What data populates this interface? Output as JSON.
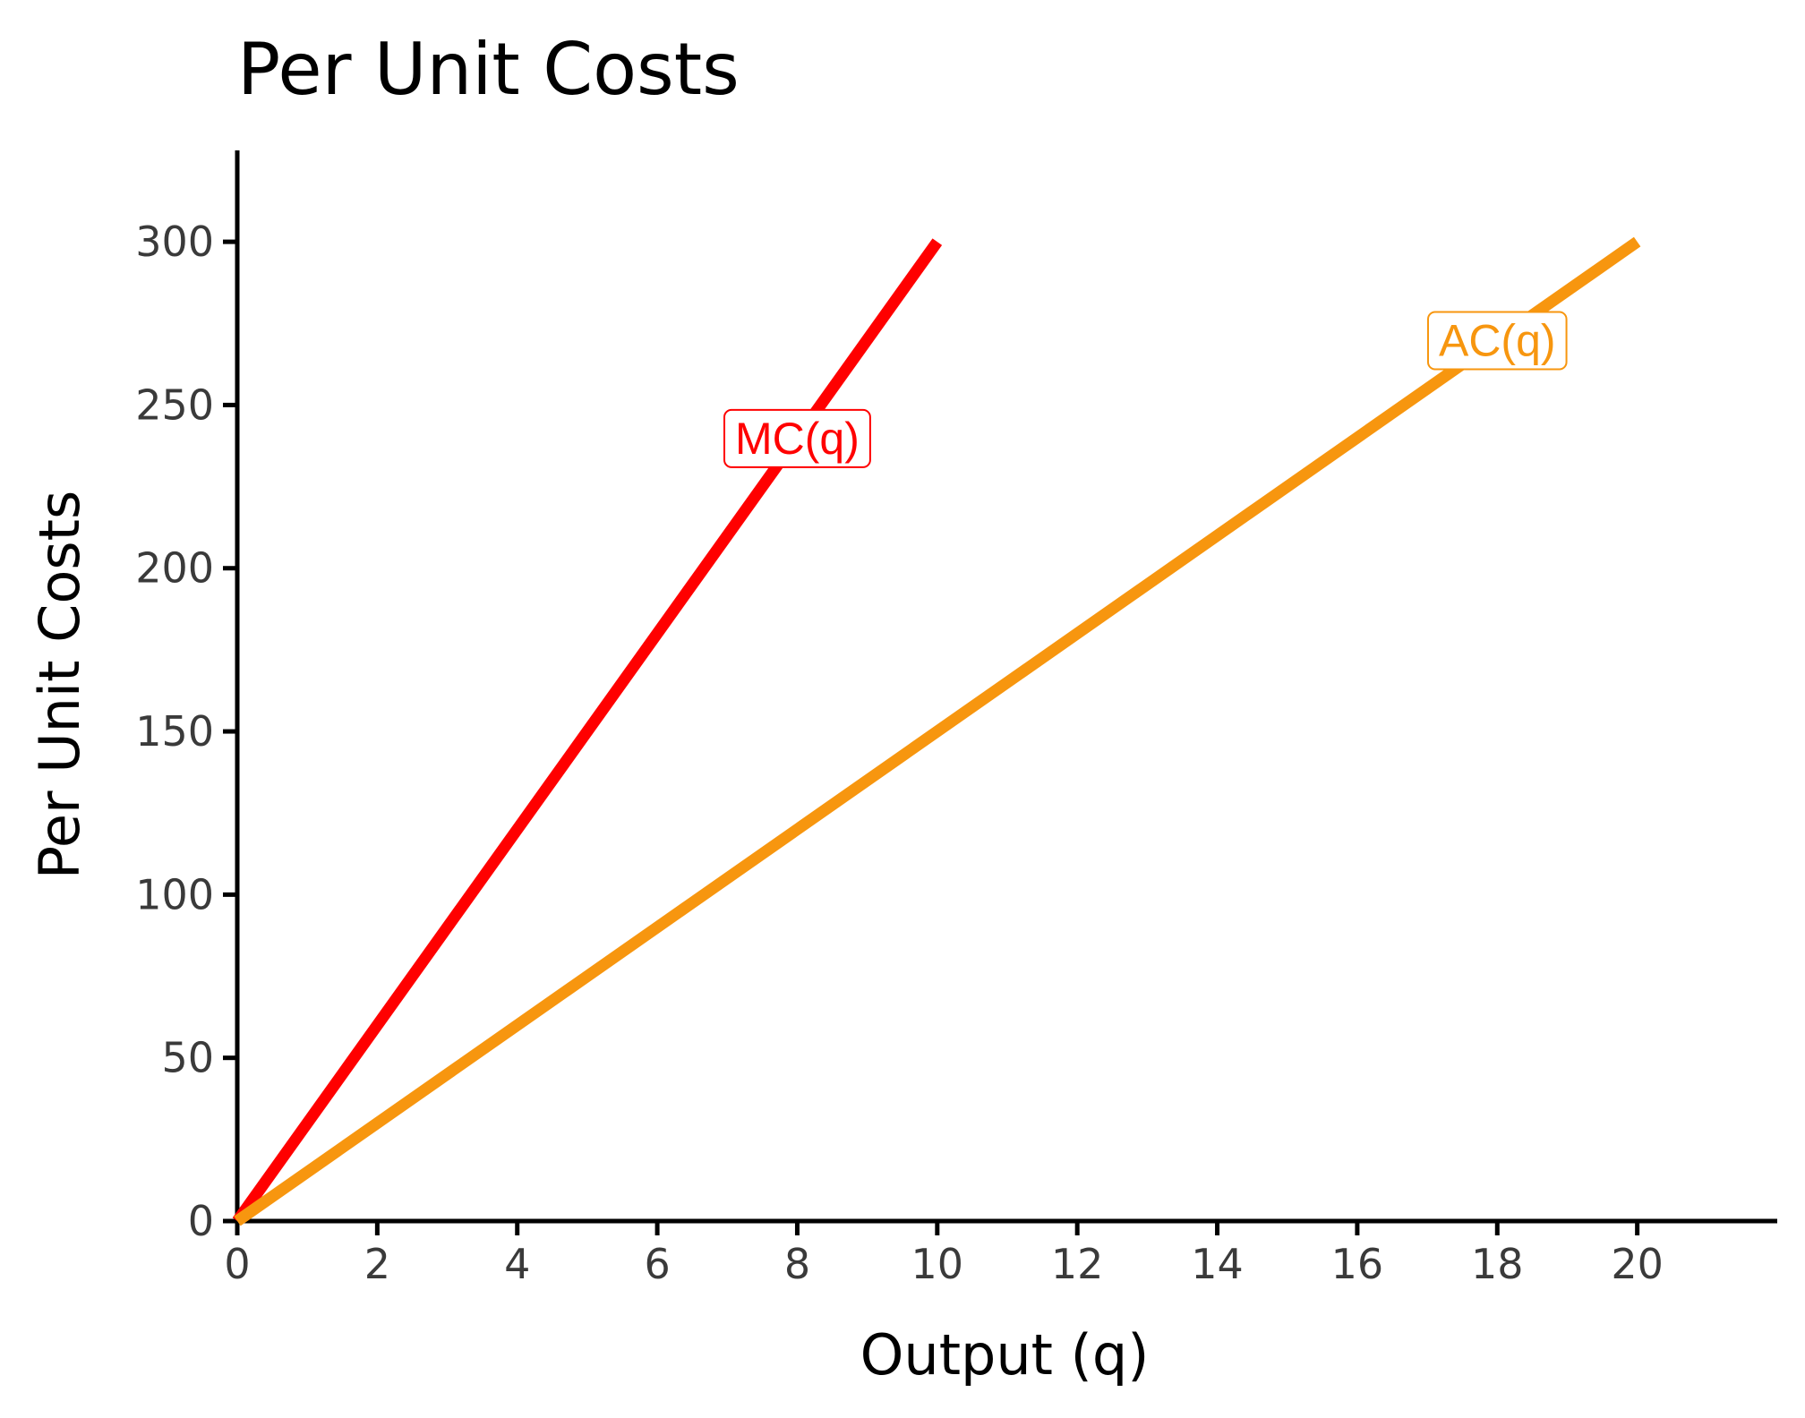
{
  "chart_data": {
    "type": "line",
    "title": "Per Unit Costs",
    "xlabel": "Output (q)",
    "ylabel": "Per Unit Costs",
    "xlim": [
      0,
      22
    ],
    "ylim": [
      0,
      328
    ],
    "xticks": [
      0,
      2,
      4,
      6,
      8,
      10,
      12,
      14,
      16,
      18,
      20
    ],
    "yticks": [
      0,
      50,
      100,
      150,
      200,
      250,
      300
    ],
    "grid": false,
    "series": [
      {
        "name": "MC(q)",
        "color": "#ff0000",
        "x": [
          0,
          10
        ],
        "y": [
          0,
          300
        ],
        "label_at": [
          8,
          240
        ]
      },
      {
        "name": "AC(q)",
        "color": "#f7960f",
        "x": [
          0,
          20
        ],
        "y": [
          0,
          300
        ],
        "label_at": [
          18,
          270
        ]
      }
    ]
  }
}
